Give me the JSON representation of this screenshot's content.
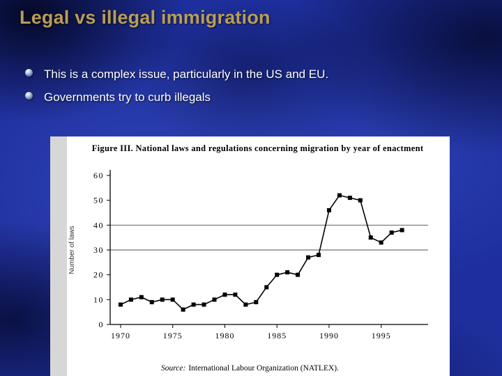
{
  "slide": {
    "title": "Legal vs illegal immigration",
    "bullets": [
      "This is a complex issue, particularly in the US and EU.",
      "Governments try to curb illegals"
    ]
  },
  "colors": {
    "background_blue": "#1e2f9d",
    "title_gold": "#b99e55",
    "bullet_text": "#ffffff",
    "chart_line": "#000000",
    "chart_panel": "#ffffff"
  },
  "chart_data": {
    "type": "line",
    "title": "Figure III.  National laws and regulations concerning migration by year of enactment",
    "ylabel": "Number of laws",
    "source_label": "Source:",
    "source_text": "International Labour Organization (NATLEX).",
    "x": [
      1970,
      1971,
      1972,
      1973,
      1974,
      1975,
      1976,
      1977,
      1978,
      1979,
      1980,
      1981,
      1982,
      1983,
      1984,
      1985,
      1986,
      1987,
      1988,
      1989,
      1990,
      1991,
      1992,
      1993,
      1994,
      1995,
      1996,
      1997
    ],
    "values": [
      8,
      10,
      11,
      9,
      10,
      10,
      6,
      8,
      8,
      10,
      12,
      12,
      8,
      9,
      15,
      20,
      21,
      20,
      27,
      28,
      46,
      52,
      51,
      50,
      35,
      33,
      37,
      38
    ],
    "ylim": [
      0,
      60
    ],
    "yticks": [
      0,
      10,
      20,
      30,
      40,
      50,
      60
    ],
    "xticks": [
      1970,
      1975,
      1980,
      1985,
      1990,
      1995
    ],
    "gridlines_y": [
      30,
      40
    ],
    "line_color": "#000000",
    "marker": "square",
    "legend": "none",
    "grid": "partial-horizontal"
  }
}
